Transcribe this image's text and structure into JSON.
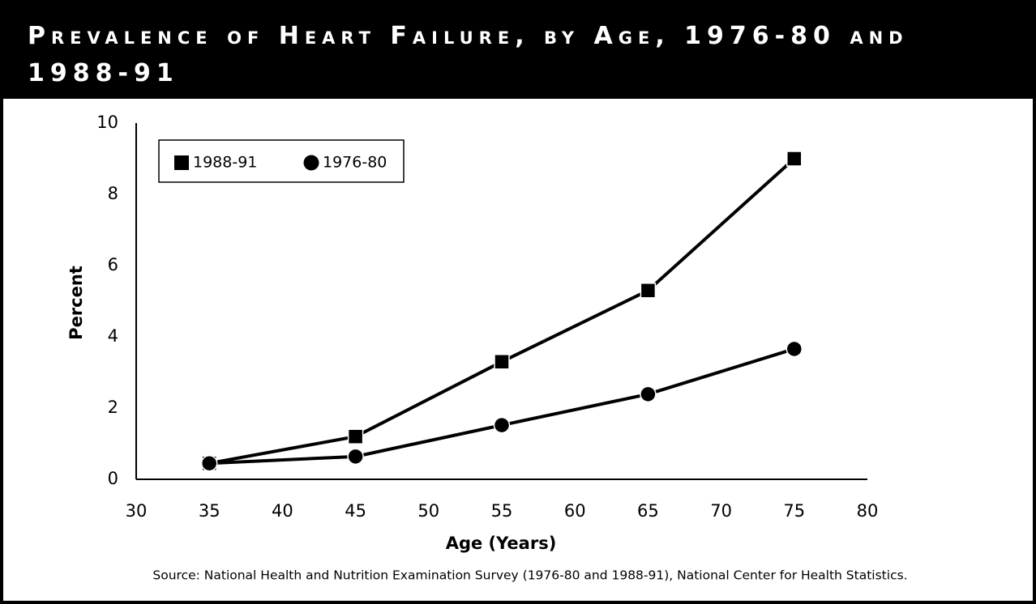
{
  "chart_data": {
    "type": "line",
    "title": "Prevalence of Heart Failure, by Age, 1976-80 and 1988-91",
    "x_label": "Age (Years)",
    "y_label": "Percent",
    "source": "Source: National Health and Nutrition Examination Survey (1976-80 and 1988-91), National Center for Health Statistics.",
    "x": [
      35,
      45,
      55,
      65,
      75
    ],
    "series": [
      {
        "name": "1988-91",
        "color": "#000000",
        "marker": "square",
        "values": [
          0.45,
          1.2,
          3.3,
          5.3,
          9.0
        ]
      },
      {
        "name": "1976-80",
        "color": "#000000",
        "marker": "circle",
        "values": [
          0.45,
          0.64,
          1.52,
          2.39,
          3.66
        ]
      }
    ],
    "xlim": [
      30,
      80
    ],
    "xticks": [
      30,
      35,
      40,
      45,
      50,
      55,
      60,
      65,
      70,
      75,
      80
    ],
    "ylim": [
      0,
      10
    ],
    "yticks": [
      0,
      2,
      4,
      6,
      8,
      10
    ],
    "grid": false,
    "legend": "upper left"
  }
}
